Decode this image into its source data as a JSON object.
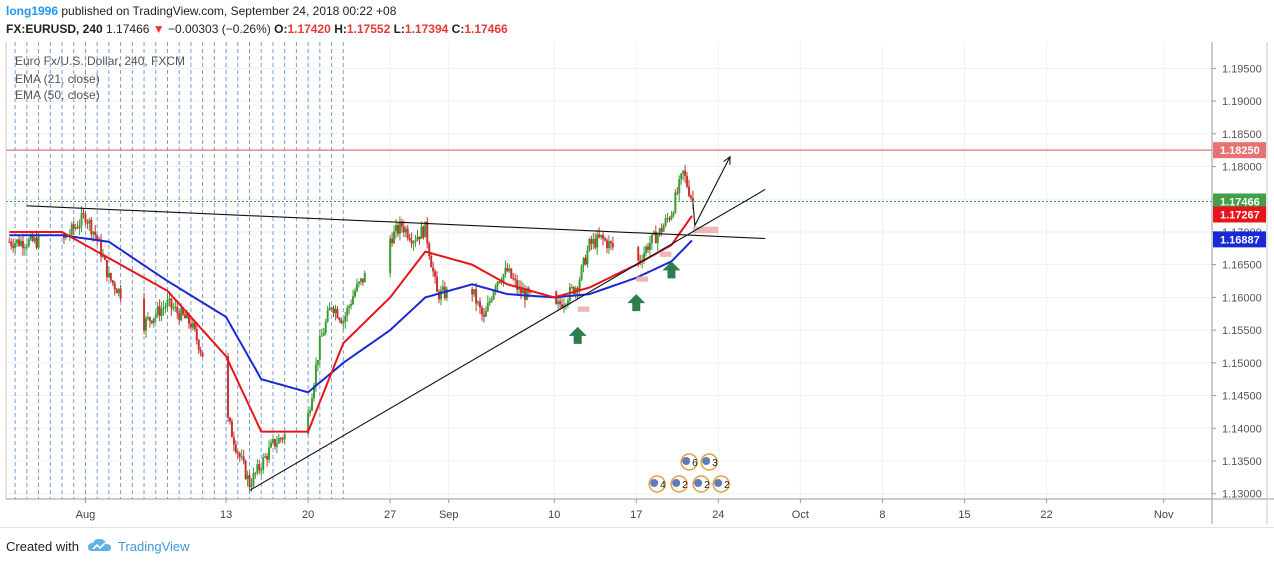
{
  "header": {
    "author": "long1996",
    "published": "published on TradingView.com, September 24, 2018 00:22 +08",
    "symbol": "FX:EURUSD, 240",
    "last": "1.17466",
    "change": "−0.00303 (−0.26%)",
    "open_label": "O:",
    "open": "1.17420",
    "high_label": "H:",
    "high": "1.17552",
    "low_label": "L:",
    "low": "1.17394",
    "close_label": "C:",
    "close": "1.17466"
  },
  "legend": {
    "instrument": "Euro Fx/U.S. Dollar, 240, FXCM",
    "ema21": "EMA (21, close)",
    "ema50": "EMA (50, close)"
  },
  "footer": {
    "created_with": "Created with",
    "brand": "TradingView"
  },
  "colors": {
    "bull": "#3d9b35",
    "bear": "#c83232",
    "ema21": "#e8141a",
    "ema50": "#1a29d6",
    "resistance": "#e57373",
    "support": "#43a047",
    "arrow": "#2e7d4f",
    "zone": "#e8a6a6"
  },
  "chart_data": {
    "type": "candlestick",
    "symbol": "FX:EURUSD",
    "timeframe": "240",
    "ylim": [
      1.1295,
      1.1975
    ],
    "y_ticks": [
      "1.19500",
      "1.19000",
      "1.18500",
      "1.18000",
      "1.17500",
      "1.17000",
      "1.16500",
      "1.16000",
      "1.15500",
      "1.15000",
      "1.14500",
      "1.14000",
      "1.13500",
      "1.13000"
    ],
    "x_ticks": [
      "Aug",
      "13",
      "20",
      "27",
      "Sep",
      "10",
      "17",
      "24",
      "Oct",
      "8",
      "15",
      "22",
      "Nov"
    ],
    "price_labels": [
      {
        "value": 1.1825,
        "text": "1.18250",
        "color": "#e57373"
      },
      {
        "value": 1.17466,
        "text": "1.17466",
        "color": "#43a047"
      },
      {
        "value": 1.17267,
        "text": "1.17267",
        "color": "#e8141a"
      },
      {
        "value": 1.16887,
        "text": "1.16887",
        "color": "#1a29d6"
      }
    ],
    "close_anchors": [
      [
        "2018-07-30",
        1.1685
      ],
      [
        "2018-07-31",
        1.1705
      ],
      [
        "2018-08-01",
        1.1725
      ],
      [
        "2018-08-02",
        1.169
      ],
      [
        "2018-08-03",
        1.163
      ],
      [
        "2018-08-06",
        1.156
      ],
      [
        "2018-08-08",
        1.159
      ],
      [
        "2018-08-10",
        1.156
      ],
      [
        "2018-08-13",
        1.142
      ],
      [
        "2018-08-14",
        1.1365
      ],
      [
        "2018-08-15",
        1.1315
      ],
      [
        "2018-08-16",
        1.1345
      ],
      [
        "2018-08-17",
        1.1375
      ],
      [
        "2018-08-20",
        1.142
      ],
      [
        "2018-08-21",
        1.153
      ],
      [
        "2018-08-22",
        1.159
      ],
      [
        "2018-08-23",
        1.1565
      ],
      [
        "2018-08-24",
        1.161
      ],
      [
        "2018-08-27",
        1.169
      ],
      [
        "2018-08-28",
        1.171
      ],
      [
        "2018-08-29",
        1.169
      ],
      [
        "2018-08-30",
        1.1705
      ],
      [
        "2018-08-31",
        1.1605
      ],
      [
        "2018-09-03",
        1.161
      ],
      [
        "2018-09-04",
        1.1565
      ],
      [
        "2018-09-05",
        1.1625
      ],
      [
        "2018-09-06",
        1.164
      ],
      [
        "2018-09-07",
        1.161
      ],
      [
        "2018-09-10",
        1.158
      ],
      [
        "2018-09-11",
        1.16
      ],
      [
        "2018-09-12",
        1.162
      ],
      [
        "2018-09-13",
        1.168
      ],
      [
        "2018-09-14",
        1.169
      ],
      [
        "2018-09-17",
        1.165
      ],
      [
        "2018-09-18",
        1.168
      ],
      [
        "2018-09-19",
        1.17
      ],
      [
        "2018-09-20",
        1.173
      ],
      [
        "2018-09-21",
        1.179
      ],
      [
        "2018-09-21T20:00",
        1.17466
      ]
    ],
    "ema21_anchors": [
      [
        "2018-07-30",
        1.17
      ],
      [
        "2018-08-03",
        1.166
      ],
      [
        "2018-08-08",
        1.161
      ],
      [
        "2018-08-13",
        1.151
      ],
      [
        "2018-08-16",
        1.1395
      ],
      [
        "2018-08-20",
        1.1395
      ],
      [
        "2018-08-23",
        1.153
      ],
      [
        "2018-08-27",
        1.16
      ],
      [
        "2018-08-30",
        1.167
      ],
      [
        "2018-09-03",
        1.165
      ],
      [
        "2018-09-06",
        1.162
      ],
      [
        "2018-09-10",
        1.16
      ],
      [
        "2018-09-13",
        1.1615
      ],
      [
        "2018-09-17",
        1.165
      ],
      [
        "2018-09-20",
        1.168
      ],
      [
        "2018-09-21T20:00",
        1.17267
      ]
    ],
    "ema50_anchors": [
      [
        "2018-07-30",
        1.1695
      ],
      [
        "2018-08-03",
        1.1685
      ],
      [
        "2018-08-08",
        1.1625
      ],
      [
        "2018-08-13",
        1.157
      ],
      [
        "2018-08-16",
        1.1475
      ],
      [
        "2018-08-20",
        1.1455
      ],
      [
        "2018-08-23",
        1.15
      ],
      [
        "2018-08-27",
        1.155
      ],
      [
        "2018-08-30",
        1.16
      ],
      [
        "2018-09-03",
        1.162
      ],
      [
        "2018-09-06",
        1.1605
      ],
      [
        "2018-09-10",
        1.16
      ],
      [
        "2018-09-13",
        1.1605
      ],
      [
        "2018-09-17",
        1.163
      ],
      [
        "2018-09-20",
        1.1655
      ],
      [
        "2018-09-21T20:00",
        1.16887
      ]
    ],
    "resistance": 1.1825,
    "current_price_line": 1.17466,
    "descending_trendline": [
      [
        "2018-07-27",
        1.174
      ],
      [
        "2018-09-28",
        1.169
      ]
    ],
    "ascending_trendline": [
      [
        "2018-08-15",
        1.1305
      ],
      [
        "2018-09-28",
        1.1765
      ]
    ],
    "projection": [
      [
        "2018-09-21T20:00",
        1.1745
      ],
      [
        "2018-09-22",
        1.171
      ],
      [
        "2018-09-25",
        1.1815
      ]
    ],
    "up_arrows": [
      [
        "2018-09-12",
        1.1555
      ],
      [
        "2018-09-17",
        1.1605
      ],
      [
        "2018-09-20",
        1.1655
      ]
    ],
    "zones": [
      {
        "from": "2018-09-12",
        "to": "2018-09-13",
        "low": 1.1578,
        "high": 1.1586
      },
      {
        "from": "2018-09-17",
        "to": "2018-09-18",
        "low": 1.1624,
        "high": 1.1632
      },
      {
        "from": "2018-09-19",
        "to": "2018-09-20",
        "low": 1.1662,
        "high": 1.167
      },
      {
        "from": "2018-09-21T20:00",
        "to": "2018-09-24",
        "low": 1.1698,
        "high": 1.1708
      }
    ],
    "event_markers": [
      "6",
      "3",
      "4",
      "2",
      "2",
      "2"
    ],
    "grid": true
  }
}
